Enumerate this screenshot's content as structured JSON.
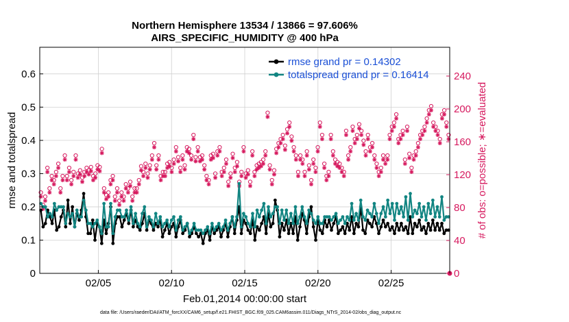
{
  "chart_data": {
    "type": "line",
    "title": "Northern Hemisphere 13534 / 13866 = 97.606%",
    "subtitle": "AIRS_SPECIFIC_HUMIDITY @ 400 hPa",
    "xlabel": "Feb.01,2014 00:00:00 start",
    "ylabel": "rmse and totalspread",
    "y2label": "# of obs: o=possible; ∗=evaluated",
    "footer": "data file: /Users/raeder/DAI/ATM_forcXX/CAM6_setup/f.e21.FHIST_BGC.f09_025.CAM6assim.011/Diags_NTrS_2014-02/obs_diag_output.nc",
    "xlim": [
      1,
      29
    ],
    "ylim": [
      0,
      0.68
    ],
    "y2lim": [
      0,
      275
    ],
    "x_ticks": [
      5,
      10,
      15,
      20,
      25
    ],
    "x_tick_labels": [
      "02/05",
      "02/10",
      "02/15",
      "02/20",
      "02/25"
    ],
    "y_ticks": [
      0,
      0.1,
      0.2,
      0.3,
      0.4,
      0.5,
      0.6
    ],
    "y_tick_labels": [
      "0",
      "0.1",
      "0.2",
      "0.3",
      "0.4",
      "0.5",
      "0.6"
    ],
    "y2_ticks": [
      0,
      40,
      80,
      120,
      160,
      200,
      240
    ],
    "y2_tick_labels": [
      "0",
      "40",
      "80",
      "120",
      "160",
      "200",
      "240"
    ],
    "grid": true,
    "legend_position": "top-right",
    "colors": {
      "rmse": "#000000",
      "spread": "#128582",
      "obs": "#d6195e",
      "legend_text": "#1a4fd6",
      "grid": "#d0d0d0"
    },
    "series": [
      {
        "name": "rmse grand pr = 0.14302",
        "axis": "left",
        "values": [
          0.19,
          0.14,
          0.15,
          0.19,
          0.17,
          0.15,
          0.19,
          0.13,
          0.14,
          0.17,
          0.19,
          0.14,
          0.22,
          0.15,
          0.2,
          0.14,
          0.18,
          0.16,
          0.19,
          0.24,
          0.17,
          0.12,
          0.12,
          0.16,
          0.1,
          0.15,
          0.14,
          0.09,
          0.16,
          0.12,
          0.15,
          0.2,
          0.09,
          0.15,
          0.17,
          0.17,
          0.14,
          0.16,
          0.18,
          0.15,
          0.19,
          0.14,
          0.16,
          0.14,
          0.13,
          0.15,
          0.18,
          0.13,
          0.16,
          0.15,
          0.13,
          0.15,
          0.14,
          0.16,
          0.11,
          0.13,
          0.15,
          0.12,
          0.14,
          0.15,
          0.11,
          0.14,
          0.16,
          0.12,
          0.13,
          0.15,
          0.11,
          0.12,
          0.14,
          0.12,
          0.11,
          0.12,
          0.09,
          0.12,
          0.13,
          0.1,
          0.14,
          0.12,
          0.13,
          0.14,
          0.11,
          0.13,
          0.15,
          0.11,
          0.14,
          0.17,
          0.12,
          0.16,
          0.2,
          0.12,
          0.16,
          0.15,
          0.13,
          0.12,
          0.16,
          0.1,
          0.14,
          0.13,
          0.15,
          0.17,
          0.12,
          0.18,
          0.14,
          0.15,
          0.22,
          0.19,
          0.11,
          0.15,
          0.13,
          0.16,
          0.12,
          0.15,
          0.12,
          0.17,
          0.1,
          0.14,
          0.18,
          0.16,
          0.12,
          0.17,
          0.2,
          0.14,
          0.1,
          0.16,
          0.13,
          0.12,
          0.16,
          0.14,
          0.16,
          0.13,
          0.15,
          0.17,
          0.12,
          0.13,
          0.14,
          0.12,
          0.15,
          0.13,
          0.17,
          0.12,
          0.15,
          0.14,
          0.2,
          0.13,
          0.12,
          0.16,
          0.15,
          0.14,
          0.17,
          0.15,
          0.12,
          0.14,
          0.16,
          0.14,
          0.15,
          0.13,
          0.14,
          0.12,
          0.15,
          0.13,
          0.15,
          0.13,
          0.14,
          0.12,
          0.17,
          0.12,
          0.15,
          0.14,
          0.16,
          0.13,
          0.14,
          0.12,
          0.15,
          0.13,
          0.16,
          0.13,
          0.15,
          0.13,
          0.15,
          0.12,
          0.13,
          0.13
        ]
      },
      {
        "name": "totalspread grand pr = 0.16414",
        "axis": "left",
        "values": [
          0.21,
          0.2,
          0.2,
          0.17,
          0.18,
          0.17,
          0.21,
          0.19,
          0.2,
          0.2,
          0.2,
          0.15,
          0.18,
          0.17,
          0.18,
          0.14,
          0.19,
          0.17,
          0.17,
          0.22,
          0.19,
          0.15,
          0.15,
          0.14,
          0.15,
          0.16,
          0.14,
          0.12,
          0.21,
          0.14,
          0.14,
          0.21,
          0.12,
          0.17,
          0.19,
          0.19,
          0.17,
          0.17,
          0.19,
          0.16,
          0.2,
          0.15,
          0.18,
          0.15,
          0.14,
          0.18,
          0.2,
          0.14,
          0.17,
          0.16,
          0.14,
          0.18,
          0.15,
          0.17,
          0.14,
          0.15,
          0.16,
          0.14,
          0.16,
          0.17,
          0.13,
          0.16,
          0.17,
          0.13,
          0.14,
          0.15,
          0.12,
          0.13,
          0.15,
          0.13,
          0.13,
          0.13,
          0.12,
          0.13,
          0.14,
          0.12,
          0.15,
          0.13,
          0.14,
          0.15,
          0.13,
          0.14,
          0.16,
          0.13,
          0.15,
          0.17,
          0.14,
          0.17,
          0.27,
          0.14,
          0.18,
          0.17,
          0.15,
          0.14,
          0.18,
          0.14,
          0.19,
          0.17,
          0.19,
          0.21,
          0.15,
          0.2,
          0.17,
          0.18,
          0.2,
          0.2,
          0.15,
          0.19,
          0.16,
          0.19,
          0.15,
          0.18,
          0.15,
          0.2,
          0.15,
          0.17,
          0.2,
          0.17,
          0.15,
          0.19,
          0.18,
          0.16,
          0.15,
          0.17,
          0.15,
          0.15,
          0.17,
          0.17,
          0.17,
          0.16,
          0.17,
          0.18,
          0.15,
          0.16,
          0.17,
          0.15,
          0.17,
          0.16,
          0.21,
          0.16,
          0.18,
          0.16,
          0.22,
          0.17,
          0.16,
          0.19,
          0.18,
          0.17,
          0.21,
          0.18,
          0.15,
          0.18,
          0.2,
          0.17,
          0.22,
          0.18,
          0.21,
          0.16,
          0.21,
          0.18,
          0.2,
          0.17,
          0.23,
          0.16,
          0.24,
          0.17,
          0.19,
          0.18,
          0.21,
          0.17,
          0.2,
          0.16,
          0.21,
          0.18,
          0.22,
          0.17,
          0.2,
          0.17,
          0.23,
          0.16,
          0.17,
          0.17
        ]
      }
    ],
    "obs": {
      "axis": "right",
      "possible": [
        95,
        80,
        90,
        125,
        100,
        115,
        110,
        120,
        130,
        100,
        115,
        140,
        115,
        125,
        110,
        120,
        140,
        118,
        122,
        113,
        120,
        125,
        122,
        126,
        115,
        118,
        128,
        126,
        148,
        100,
        92,
        95,
        110,
        115,
        90,
        100,
        85,
        95,
        90,
        105,
        100,
        108,
        90,
        100,
        100,
        110,
        127,
        120,
        130,
        118,
        128,
        140,
        155,
        128,
        140,
        115,
        120,
        120,
        130,
        132,
        125,
        135,
        150,
        138,
        125,
        140,
        128,
        150,
        148,
        140,
        165,
        138,
        150,
        138,
        140,
        128,
        115,
        110,
        140,
        142,
        118,
        145,
        150,
        120,
        125,
        135,
        108,
        118,
        142,
        125,
        132,
        108,
        120,
        150,
        118,
        122,
        108,
        145,
        120,
        128,
        130,
        132,
        135,
        145,
        192,
        128,
        110,
        122,
        148,
        155,
        160,
        165,
        152,
        172,
        180,
        163,
        150,
        140,
        120,
        140,
        135,
        120,
        145,
        128,
        110,
        135,
        125,
        150,
        180,
        165,
        130,
        115,
        120,
        165,
        145,
        135,
        132,
        130,
        125,
        120,
        170,
        140,
        150,
        175,
        160,
        165,
        178,
        170,
        158,
        145,
        165,
        150,
        155,
        140,
        130,
        120,
        125,
        140,
        135,
        140,
        165,
        175,
        180,
        190,
        160,
        165,
        170,
        135,
        175,
        142,
        125,
        140,
        145,
        155,
        165,
        170,
        175,
        185,
        195,
        200,
        180,
        175,
        170,
        160,
        190,
        195,
        180,
        165
      ]
    }
  }
}
